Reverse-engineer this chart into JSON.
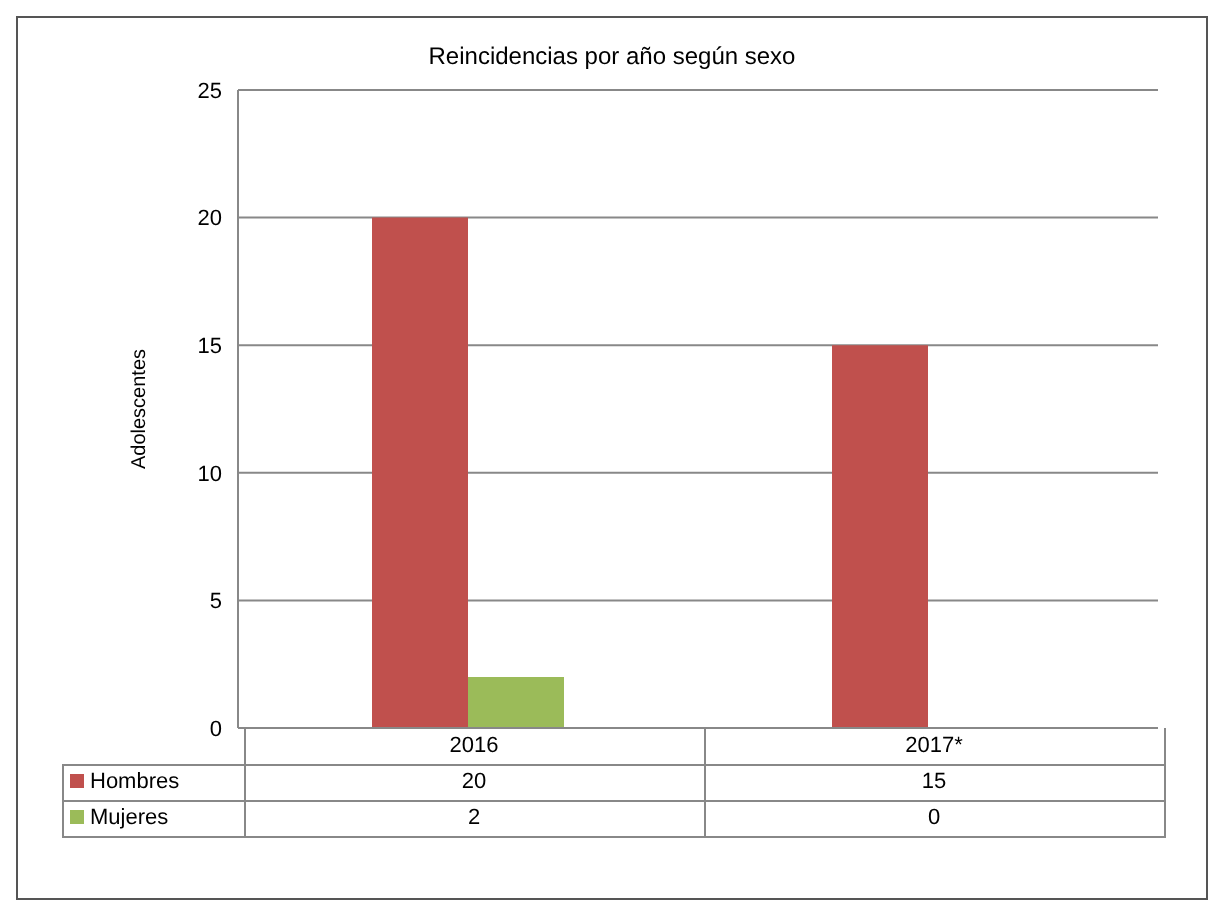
{
  "chart_data": {
    "type": "bar",
    "title": "Reincidencias por año según sexo",
    "ylabel": "Adolescentes",
    "categories": [
      "2016",
      "2017*"
    ],
    "series": [
      {
        "name": "Hombres",
        "color": "#c0504d",
        "values": [
          20,
          15
        ]
      },
      {
        "name": "Mujeres",
        "color": "#9bbb59",
        "values": [
          2,
          0
        ]
      }
    ],
    "ylim": [
      0,
      25
    ],
    "yticks": [
      0,
      5,
      10,
      15,
      20,
      25
    ],
    "grid": "y",
    "legend": "bottom",
    "data_labels": true
  }
}
